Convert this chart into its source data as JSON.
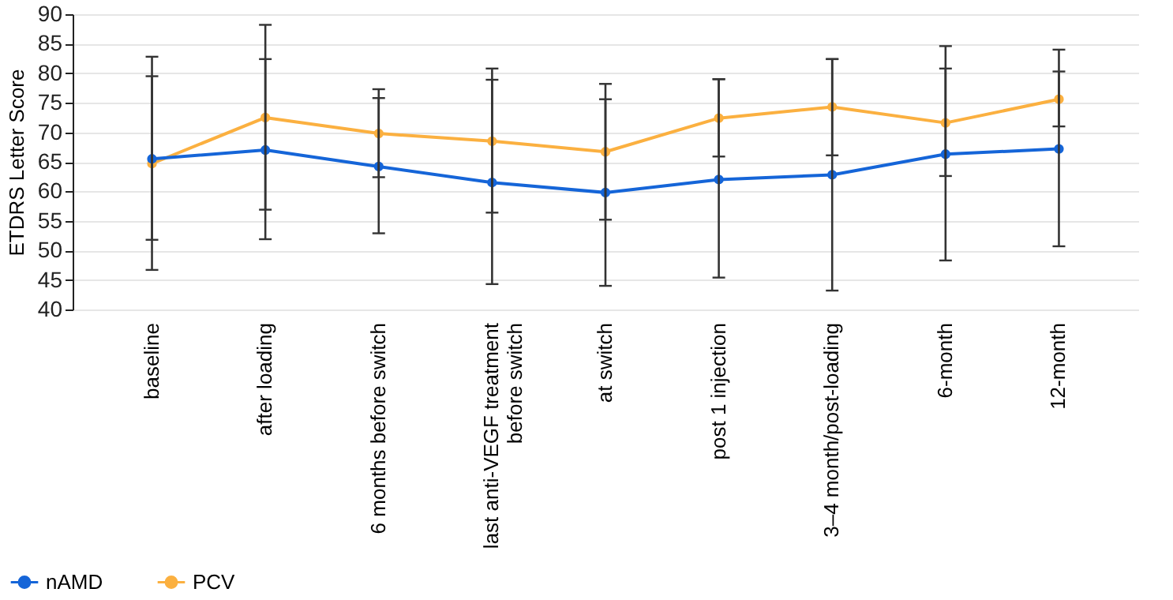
{
  "chart_data": {
    "type": "line",
    "ylabel": "ETDRS Letter Score",
    "categories": [
      "baseline",
      "after loading",
      "6 months before switch",
      "last anti-VEGF treatment before switch",
      "at switch",
      "post 1 injection",
      "3–4 month/post-loading",
      "6-month",
      "12-month"
    ],
    "series": [
      {
        "name": "nAMD",
        "color": "#1565d8",
        "values": [
          65.5,
          67,
          64.2,
          61.5,
          59.8,
          62,
          62.8,
          66.3,
          67.2
        ],
        "errors": [
          [
            51.8,
            79.5
          ],
          [
            51.9,
            82.4
          ],
          [
            52.9,
            75.8
          ],
          [
            44.3,
            78.9
          ],
          [
            44,
            75.6
          ],
          [
            45.4,
            79
          ],
          [
            43.2,
            82.4
          ],
          [
            48.3,
            84.6
          ],
          [
            50.7,
            84
          ]
        ]
      },
      {
        "name": "PCV",
        "color": "#fbb040",
        "values": [
          64.7,
          72.5,
          69.8,
          68.5,
          66.7,
          72.4,
          74.3,
          71.6,
          75.6
        ],
        "errors": [
          [
            46.7,
            82.8
          ],
          [
            56.9,
            88.2
          ],
          [
            62.4,
            77.3
          ],
          [
            56.4,
            80.8
          ],
          [
            55.2,
            78.2
          ],
          [
            65.9,
            79
          ],
          [
            66.1,
            82.4
          ],
          [
            62.6,
            80.8
          ],
          [
            71,
            80.3
          ]
        ]
      }
    ],
    "ylim": [
      40,
      90
    ],
    "yticks": [
      40,
      45,
      50,
      55,
      60,
      65,
      70,
      75,
      80,
      85,
      90
    ],
    "grid": "y",
    "legend": "bottom left",
    "marker": "circle",
    "line_style": "solid"
  }
}
